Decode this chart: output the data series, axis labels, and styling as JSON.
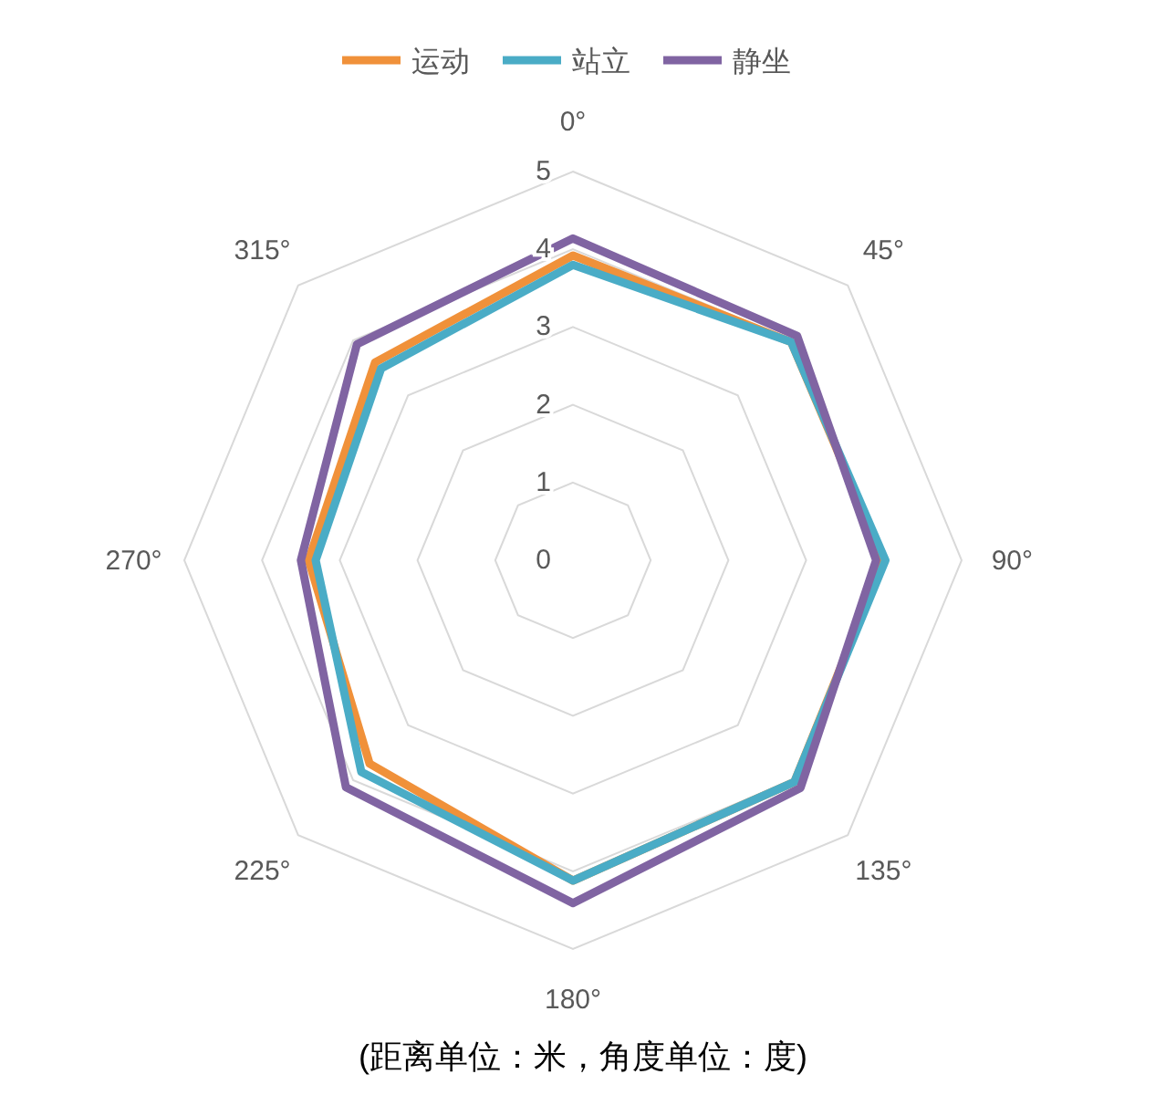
{
  "chart_data": {
    "type": "radar",
    "categories": [
      "0°",
      "45°",
      "90°",
      "135°",
      "180°",
      "225°",
      "270°",
      "315°"
    ],
    "series": [
      {
        "name": "运动",
        "color": "#f0913a",
        "values": [
          3.92,
          3.97,
          4.0,
          4.03,
          4.12,
          3.7,
          3.4,
          3.6
        ]
      },
      {
        "name": "站立",
        "color": "#4aacc6",
        "values": [
          3.8,
          3.97,
          4.02,
          4.03,
          4.12,
          3.85,
          3.31,
          3.49
        ]
      },
      {
        "name": "静坐",
        "color": "#8064a2",
        "values": [
          4.14,
          4.08,
          3.9,
          4.14,
          4.41,
          4.13,
          3.5,
          3.93
        ]
      }
    ],
    "ylim": [
      0,
      5
    ],
    "yticks": [
      0,
      1,
      2,
      3,
      4,
      5
    ],
    "grid": true,
    "legend": "top",
    "annotations": [
      "(距离单位：米，角度单位：度)"
    ]
  }
}
